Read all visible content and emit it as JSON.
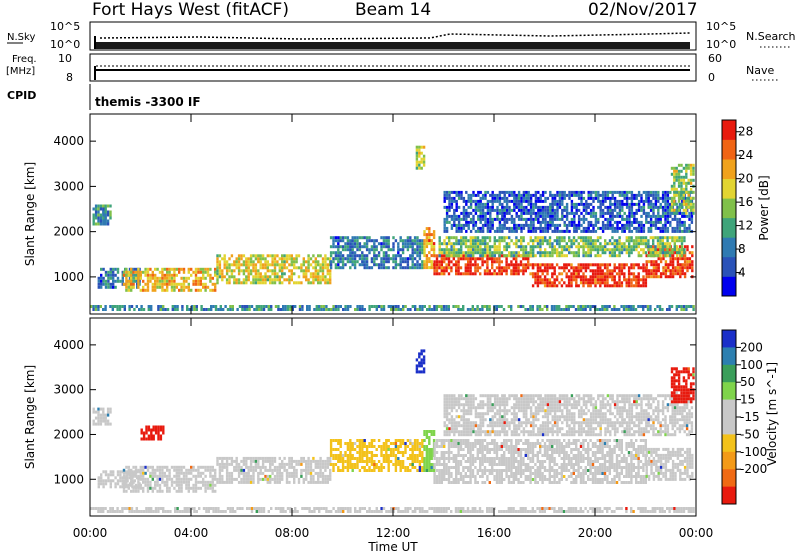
{
  "header": {
    "radar_name": "Fort Hays West (fitACF)",
    "beam": "Beam 14",
    "date": "02/Nov/2017"
  },
  "param_panels": {
    "nsky_label": "N.Sky",
    "nsky_ticks": [
      "10^5",
      "10^0"
    ],
    "nsearch_label": "N.Search",
    "nsearch_ticks": [
      "10^5",
      "10^0"
    ],
    "freq_label_1": "Freq.",
    "freq_label_2": "[MHz]",
    "freq_ticks": [
      "10",
      "8"
    ],
    "nave_label": "Nave",
    "nave_ticks": [
      "60",
      "0"
    ],
    "cpid_label": "CPID",
    "cpid_value": "themis -3300 IF"
  },
  "colors": {
    "power_scale": [
      "#0000ee",
      "#2a52b8",
      "#2f7ab2",
      "#3fa47a",
      "#80c04a",
      "#e2d431",
      "#f0a21c",
      "#f06414",
      "#e81a0e"
    ],
    "velocity_scale": [
      "#1a2fc9",
      "#2c7fb0",
      "#3a9e5a",
      "#7fd44b",
      "#c8c8c8",
      "#c8c8c8",
      "#f3c21b",
      "#f39a18",
      "#f06a14",
      "#e81a0e"
    ]
  },
  "chart_data": [
    {
      "type": "heatmap",
      "title": "Power",
      "xlabel": "Time UT",
      "ylabel": "Slant Range [km]",
      "x_ticks": [
        "00:00",
        "04:00",
        "08:00",
        "12:00",
        "16:00",
        "20:00",
        "00:00"
      ],
      "y_ticks": [
        "1000",
        "2000",
        "3000",
        "4000"
      ],
      "xlim": [
        0,
        24
      ],
      "ylim": [
        180,
        4600
      ],
      "colorbar_label": "Power [dB]",
      "colorbar_ticks": [
        "4",
        "8",
        "12",
        "16",
        "20",
        "24",
        "28"
      ],
      "colorbar_range": [
        0,
        30
      ],
      "regions": [
        {
          "t0": 0.1,
          "t1": 0.8,
          "r0": 2200,
          "r1": 2600,
          "value": 10
        },
        {
          "t0": 0.3,
          "t1": 2.0,
          "r0": 800,
          "r1": 1200,
          "value": 8
        },
        {
          "t0": 1.3,
          "t1": 5.0,
          "r0": 700,
          "r1": 1200,
          "value": 20
        },
        {
          "t0": 5.0,
          "t1": 9.5,
          "r0": 900,
          "r1": 1500,
          "value": 18
        },
        {
          "t0": 9.5,
          "t1": 13.2,
          "r0": 1200,
          "r1": 1900,
          "value": 8
        },
        {
          "t0": 12.9,
          "t1": 13.2,
          "r0": 3400,
          "r1": 3900,
          "value": 16
        },
        {
          "t0": 13.2,
          "t1": 13.6,
          "r0": 1200,
          "r1": 2100,
          "value": 22
        },
        {
          "t0": 13.6,
          "t1": 17.5,
          "r0": 1100,
          "r1": 1500,
          "value": 28
        },
        {
          "t0": 17.5,
          "t1": 22.0,
          "r0": 800,
          "r1": 1300,
          "value": 28
        },
        {
          "t0": 22.0,
          "t1": 23.9,
          "r0": 1000,
          "r1": 1700,
          "value": 28
        },
        {
          "t0": 13.8,
          "t1": 23.5,
          "r0": 1500,
          "r1": 1900,
          "value": 14
        },
        {
          "t0": 14.0,
          "t1": 23.8,
          "r0": 2000,
          "r1": 2900,
          "value": 6
        },
        {
          "t0": 23.0,
          "t1": 23.9,
          "r0": 2400,
          "r1": 3500,
          "value": 16
        },
        {
          "t0": 0.0,
          "t1": 23.9,
          "r0": 250,
          "r1": 380,
          "value": 10
        }
      ]
    },
    {
      "type": "heatmap",
      "title": "Velocity",
      "xlabel": "Time UT",
      "ylabel": "Slant Range [km]",
      "x_ticks": [
        "00:00",
        "04:00",
        "08:00",
        "12:00",
        "16:00",
        "20:00",
        "00:00"
      ],
      "y_ticks": [
        "1000",
        "2000",
        "3000",
        "4000"
      ],
      "xlim": [
        0,
        24
      ],
      "ylim": [
        180,
        4600
      ],
      "colorbar_label": "Velocity [m s^-1]",
      "colorbar_ticks": [
        "200",
        "100",
        "50",
        "15",
        "-15",
        "-50",
        "-100",
        "-200"
      ],
      "regions": [
        {
          "t0": 0.1,
          "t1": 0.8,
          "r0": 2200,
          "r1": 2600,
          "value": 0
        },
        {
          "t0": 2.0,
          "t1": 2.9,
          "r0": 1900,
          "r1": 2200,
          "value": -250
        },
        {
          "t0": 0.3,
          "t1": 2.0,
          "r0": 800,
          "r1": 1200,
          "value": 0
        },
        {
          "t0": 1.3,
          "t1": 5.0,
          "r0": 700,
          "r1": 1300,
          "value": -40
        },
        {
          "t0": 5.0,
          "t1": 9.5,
          "r0": 900,
          "r1": 1500,
          "value": -40
        },
        {
          "t0": 9.5,
          "t1": 13.2,
          "r0": 1200,
          "r1": 1900,
          "value": -60
        },
        {
          "t0": 12.9,
          "t1": 13.2,
          "r0": 3400,
          "r1": 3900,
          "value": 250
        },
        {
          "t0": 13.2,
          "t1": 13.6,
          "r0": 1200,
          "r1": 2100,
          "value": 40
        },
        {
          "t0": 13.6,
          "t1": 22.0,
          "r0": 900,
          "r1": 1900,
          "value": 0
        },
        {
          "t0": 22.0,
          "t1": 23.9,
          "r0": 1000,
          "r1": 1700,
          "value": 0
        },
        {
          "t0": 14.0,
          "t1": 23.8,
          "r0": 2000,
          "r1": 2900,
          "value": 0
        },
        {
          "t0": 23.0,
          "t1": 23.9,
          "r0": 2700,
          "r1": 3500,
          "value": -250
        },
        {
          "t0": 0.0,
          "t1": 23.9,
          "r0": 250,
          "r1": 380,
          "value": -40
        }
      ]
    }
  ]
}
